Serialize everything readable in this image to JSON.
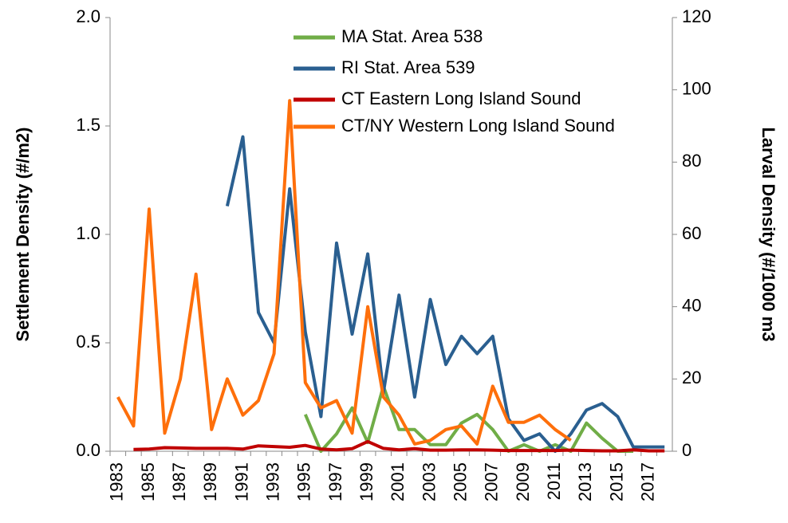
{
  "chart_data": {
    "type": "line",
    "y_label": "Settlement Density (#/m2)",
    "y2_label": "Larval Density (#/1000 m3",
    "categories": [
      "1983",
      null,
      "1985",
      null,
      "1987",
      null,
      "1989",
      null,
      "1991",
      null,
      "1993",
      null,
      "1995",
      null,
      "1997",
      null,
      "1999",
      null,
      "2001",
      null,
      "2003",
      null,
      "2005",
      null,
      "2007",
      null,
      "2009",
      null,
      "2011",
      null,
      "2013",
      null,
      "2015",
      null,
      "2017",
      null
    ],
    "ylim": [
      0,
      2
    ],
    "yticks": [
      {
        "value": 0,
        "label": "0.0"
      },
      {
        "value": 0.5,
        "label": "0.5"
      },
      {
        "value": 1,
        "label": "1.0"
      },
      {
        "value": 1.5,
        "label": "1.5"
      },
      {
        "value": 2,
        "label": "2.0"
      }
    ],
    "y2lim": [
      0,
      120
    ],
    "y2ticks": [
      0,
      20,
      40,
      60,
      80,
      100,
      120
    ],
    "legend": "top",
    "series": [
      {
        "name": "MA Stat. Area 538",
        "color": "#70ad47",
        "values": [
          null,
          null,
          null,
          null,
          null,
          null,
          null,
          null,
          null,
          null,
          null,
          null,
          0.17,
          0.0,
          0.08,
          0.2,
          0.04,
          0.3,
          0.1,
          0.1,
          0.03,
          0.03,
          0.13,
          0.17,
          0.1,
          0.0,
          0.03,
          0.0,
          0.03,
          0.0,
          0.13,
          0.06,
          0.0,
          0.0,
          null,
          null
        ]
      },
      {
        "name": "RI Stat. Area 539",
        "color": "#2a5f90",
        "values": [
          null,
          null,
          null,
          null,
          null,
          null,
          null,
          1.13,
          1.45,
          0.64,
          0.5,
          1.21,
          0.55,
          0.16,
          0.96,
          0.54,
          0.91,
          0.27,
          0.72,
          0.25,
          0.7,
          0.4,
          0.53,
          0.45,
          0.53,
          0.15,
          0.05,
          0.08,
          0.0,
          0.08,
          0.19,
          0.22,
          0.16,
          0.02,
          0.02,
          0.02
        ]
      },
      {
        "name": "CT Eastern Long Island Sound",
        "color": "#c00000",
        "axis": "y2",
        "values": [
          null,
          0.5,
          0.6,
          1.0,
          0.9,
          0.8,
          0.8,
          0.8,
          0.6,
          1.5,
          1.3,
          1.1,
          1.6,
          0.6,
          0.4,
          0.7,
          2.7,
          0.8,
          0.4,
          0.7,
          0.3,
          0.3,
          0.4,
          0.4,
          0.3,
          0.2,
          0.2,
          0.2,
          0.2,
          0.3,
          0.2,
          0.1,
          0.1,
          0.4,
          0.1,
          0.1
        ]
      },
      {
        "name": "CT/NY Western Long Island Sound",
        "color": "#fe6f0b",
        "axis": "y2",
        "values": [
          15,
          7,
          67,
          5,
          20,
          49,
          6,
          20,
          10,
          14,
          27,
          97,
          19,
          12,
          14,
          5,
          40,
          15,
          10,
          2,
          3,
          6,
          7,
          2,
          18,
          8,
          8,
          10,
          6,
          3,
          null,
          null,
          null,
          null,
          null,
          null
        ]
      }
    ]
  }
}
